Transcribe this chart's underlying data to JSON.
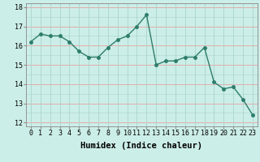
{
  "x_data": [
    0,
    1,
    2,
    3,
    4,
    5,
    6,
    7,
    8,
    9,
    10,
    11,
    12,
    13,
    14,
    15,
    16,
    17,
    18,
    19,
    20,
    21,
    22,
    23
  ],
  "y_data": [
    16.2,
    16.6,
    16.5,
    16.5,
    16.2,
    15.7,
    15.4,
    15.4,
    15.9,
    16.3,
    16.5,
    17.0,
    17.6,
    15.0,
    15.2,
    15.2,
    15.4,
    15.4,
    15.9,
    14.1,
    13.75,
    13.85,
    13.2,
    12.4
  ],
  "ylim": [
    11.8,
    18.2
  ],
  "yticks": [
    12,
    13,
    14,
    15,
    16,
    17,
    18
  ],
  "xticks": [
    0,
    1,
    2,
    3,
    4,
    5,
    6,
    7,
    8,
    9,
    10,
    11,
    12,
    13,
    14,
    15,
    16,
    17,
    18,
    19,
    20,
    21,
    22,
    23
  ],
  "line_color": "#2d7d6b",
  "bg_color": "#cceee8",
  "grid_color_major": "#f0b0b0",
  "grid_color_minor": "#b8ddd8",
  "xlabel": "Humidex (Indice chaleur)",
  "xlabel_fontsize": 7.5,
  "tick_fontsize": 6,
  "line_width": 1.0,
  "marker_size": 2.5
}
